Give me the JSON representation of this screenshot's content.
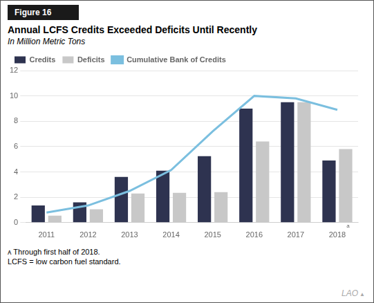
{
  "chart_data": {
    "type": "bar",
    "title": "Annual LCFS Credits Exceeded Deficits Until Recently",
    "subtitle": "In Million Metric Tons",
    "figure_label": "Figure 16",
    "categories": [
      "2011",
      "2012",
      "2013",
      "2014",
      "2015",
      "2016",
      "2017",
      "2018"
    ],
    "series": [
      {
        "name": "Credits",
        "color": "#2e3350",
        "values": [
          1.35,
          1.6,
          3.6,
          4.1,
          5.25,
          9.0,
          9.5,
          4.9
        ]
      },
      {
        "name": "Deficits",
        "color": "#c8c8c8",
        "values": [
          0.55,
          1.05,
          2.3,
          2.35,
          2.4,
          6.4,
          9.5,
          5.8
        ]
      },
      {
        "name": "Cumulative Bank of Credits",
        "type": "line",
        "color": "#7bbfdf",
        "values": [
          0.8,
          1.35,
          2.5,
          4.15,
          7.2,
          10.0,
          9.8,
          8.9
        ]
      }
    ],
    "ylim": [
      0,
      12
    ],
    "yticks": [
      0,
      2,
      4,
      6,
      8,
      10,
      12
    ],
    "grid": true,
    "legend": "upper left",
    "annotations": [
      {
        "text": "a",
        "category": "2018"
      }
    ],
    "footnotes": [
      "ᴀ Through first half of 2018.",
      "LCFS = low carbon fuel standard."
    ],
    "logo": [
      "LAO",
      "▲"
    ]
  }
}
